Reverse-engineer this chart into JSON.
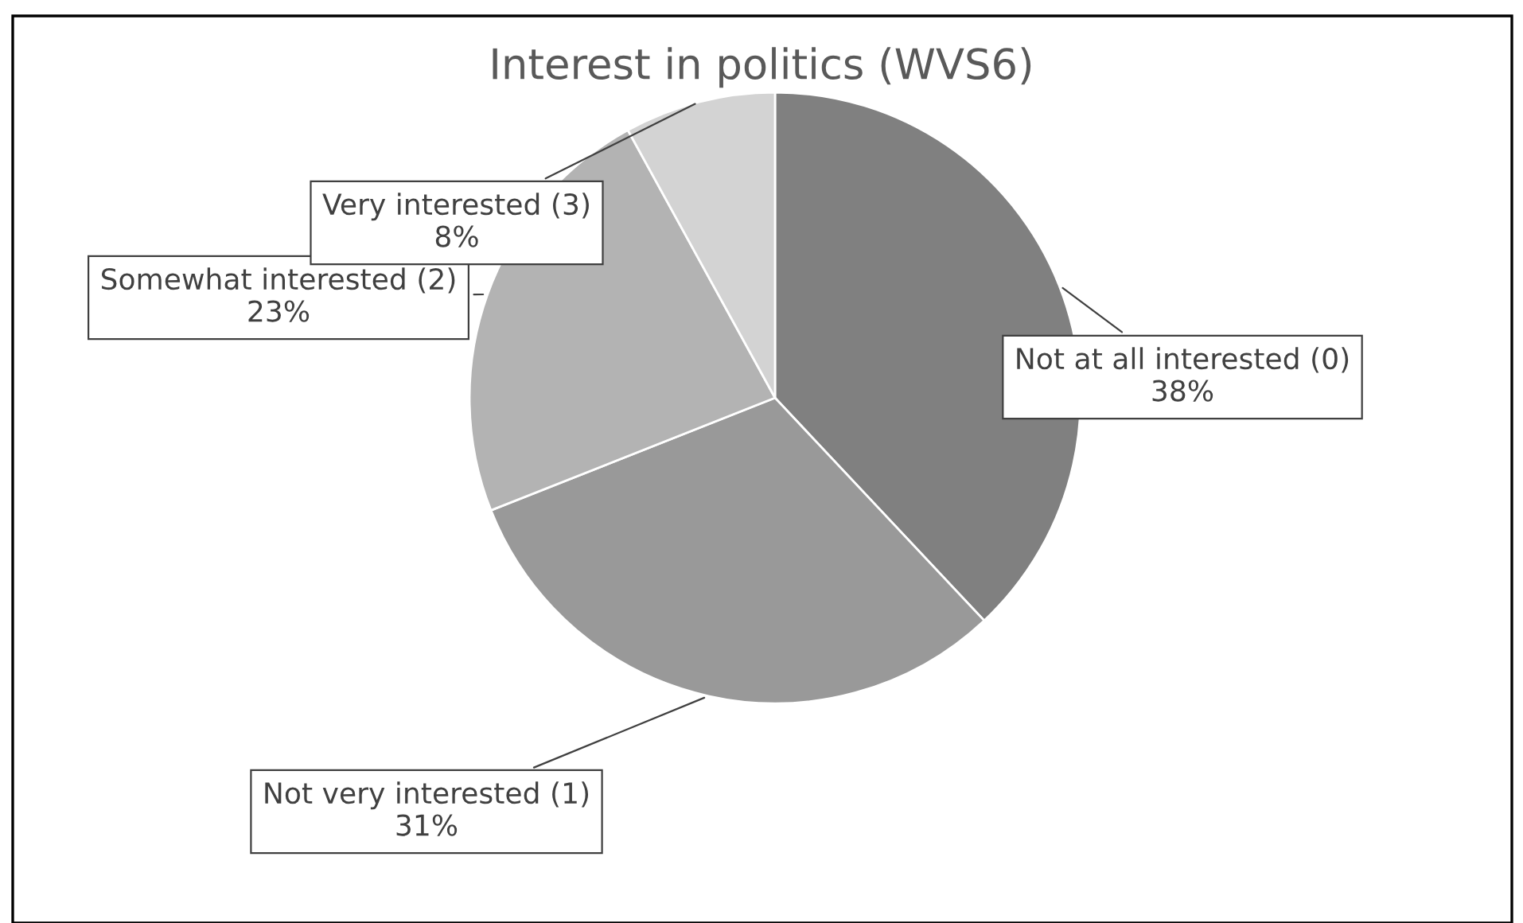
{
  "chart_data": {
    "type": "pie",
    "title": "Interest in politics (WVS6)",
    "categories": [
      "Not at all interested (0)",
      "Not very interested (1)",
      "Somewhat interested (2)",
      "Very interested (3)"
    ],
    "values": [
      38,
      31,
      23,
      8
    ],
    "colors": [
      "#808080",
      "#999999",
      "#b3b3b3",
      "#d3d3d3"
    ],
    "value_labels": [
      "38%",
      "31%",
      "23%",
      "8%"
    ]
  }
}
